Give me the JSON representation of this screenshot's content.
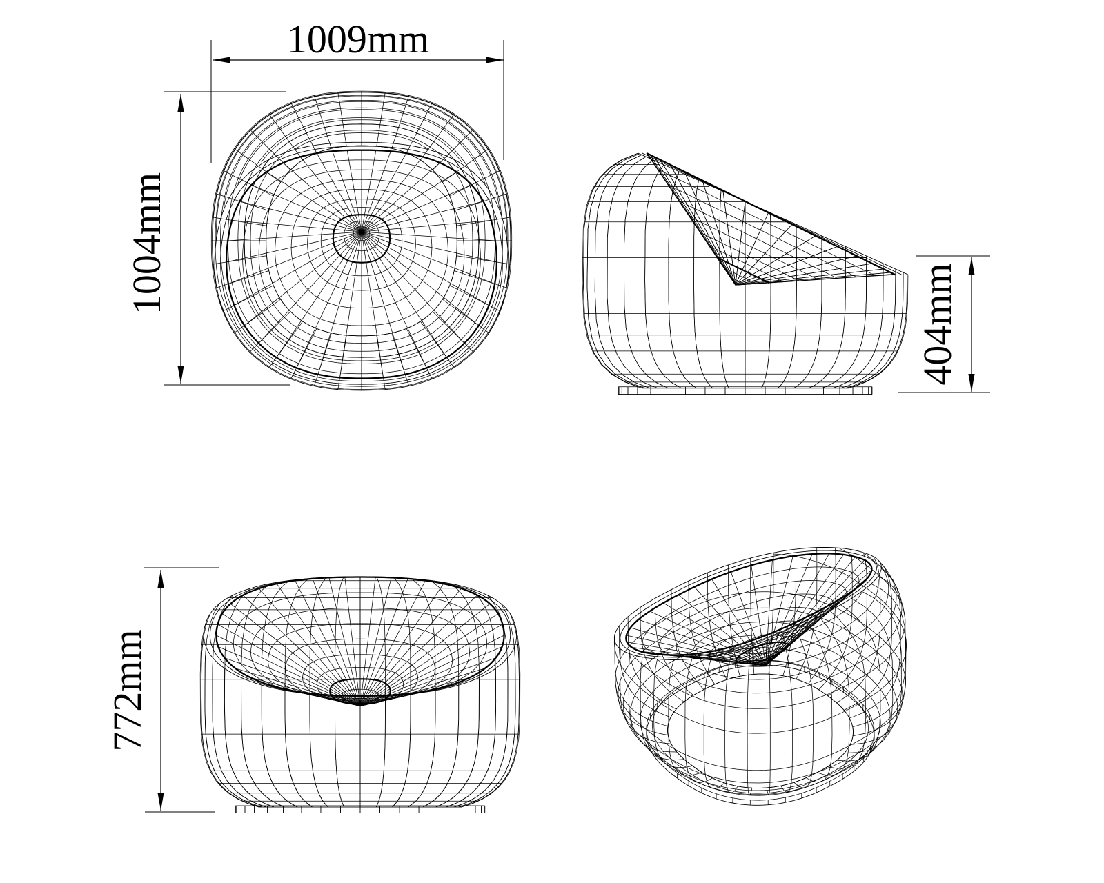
{
  "drawing": {
    "background_color": "#ffffff",
    "line_color": "#000000",
    "dimensions": {
      "width": "1009mm",
      "depth": "1004mm",
      "seat_height": "404mm",
      "height": "772mm"
    }
  }
}
